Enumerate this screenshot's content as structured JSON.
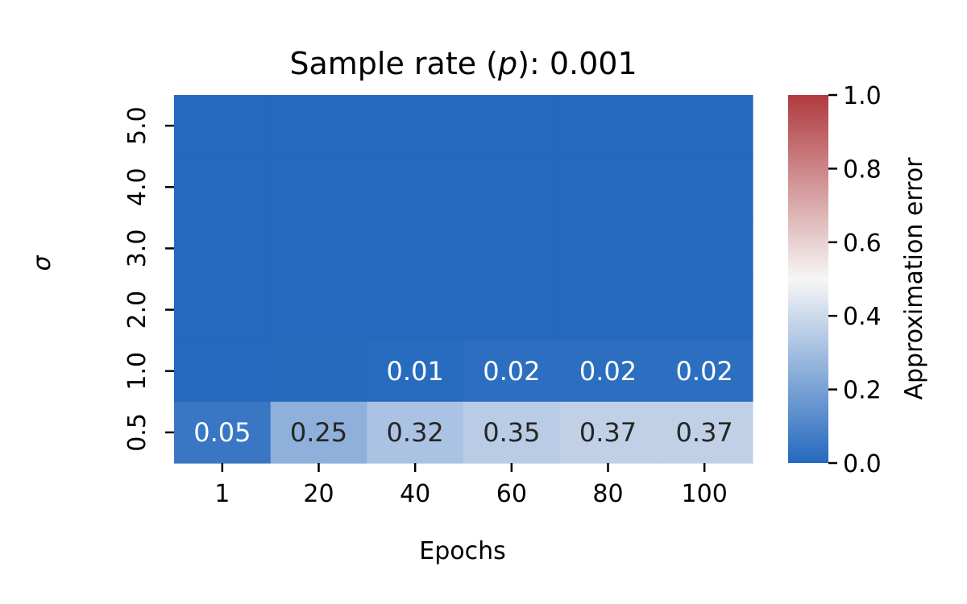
{
  "chart_data": {
    "type": "heatmap",
    "title_text": "Sample rate (",
    "title_var": "p",
    "title_suffix": "): 0.001",
    "xlabel": "Epochs",
    "ylabel": "σ",
    "x_categories": [
      "1",
      "20",
      "40",
      "60",
      "80",
      "100"
    ],
    "y_categories": [
      "5.0",
      "4.0",
      "3.0",
      "2.0",
      "1.0",
      "0.5"
    ],
    "values": [
      [
        0.0,
        0.0,
        0.0,
        0.0,
        0.0,
        0.0
      ],
      [
        0.0,
        0.0,
        0.0,
        0.0,
        0.0,
        0.0
      ],
      [
        0.0,
        0.0,
        0.0,
        0.0,
        0.0,
        0.0
      ],
      [
        0.0,
        0.0,
        0.0,
        0.0,
        0.0,
        0.0
      ],
      [
        0.0,
        0.004,
        0.01,
        0.02,
        0.02,
        0.02
      ],
      [
        0.05,
        0.25,
        0.32,
        0.35,
        0.37,
        0.37
      ]
    ],
    "annotations": [
      [
        "",
        "",
        "",
        "",
        "",
        ""
      ],
      [
        "",
        "",
        "",
        "",
        "",
        ""
      ],
      [
        "",
        "",
        "",
        "",
        "",
        ""
      ],
      [
        "",
        "",
        "",
        "",
        "",
        ""
      ],
      [
        "",
        "",
        "0.01",
        "0.02",
        "0.02",
        "0.02"
      ],
      [
        "0.05",
        "0.25",
        "0.32",
        "0.35",
        "0.37",
        "0.37"
      ]
    ],
    "colorbar": {
      "label": "Approximation error",
      "vmin": 0.0,
      "vmax": 1.0,
      "ticks": [
        "0.0",
        "0.2",
        "0.4",
        "0.6",
        "0.8",
        "1.0"
      ],
      "colors": [
        "#2469be",
        "#f7f6f6",
        "#b03a3e"
      ]
    }
  }
}
